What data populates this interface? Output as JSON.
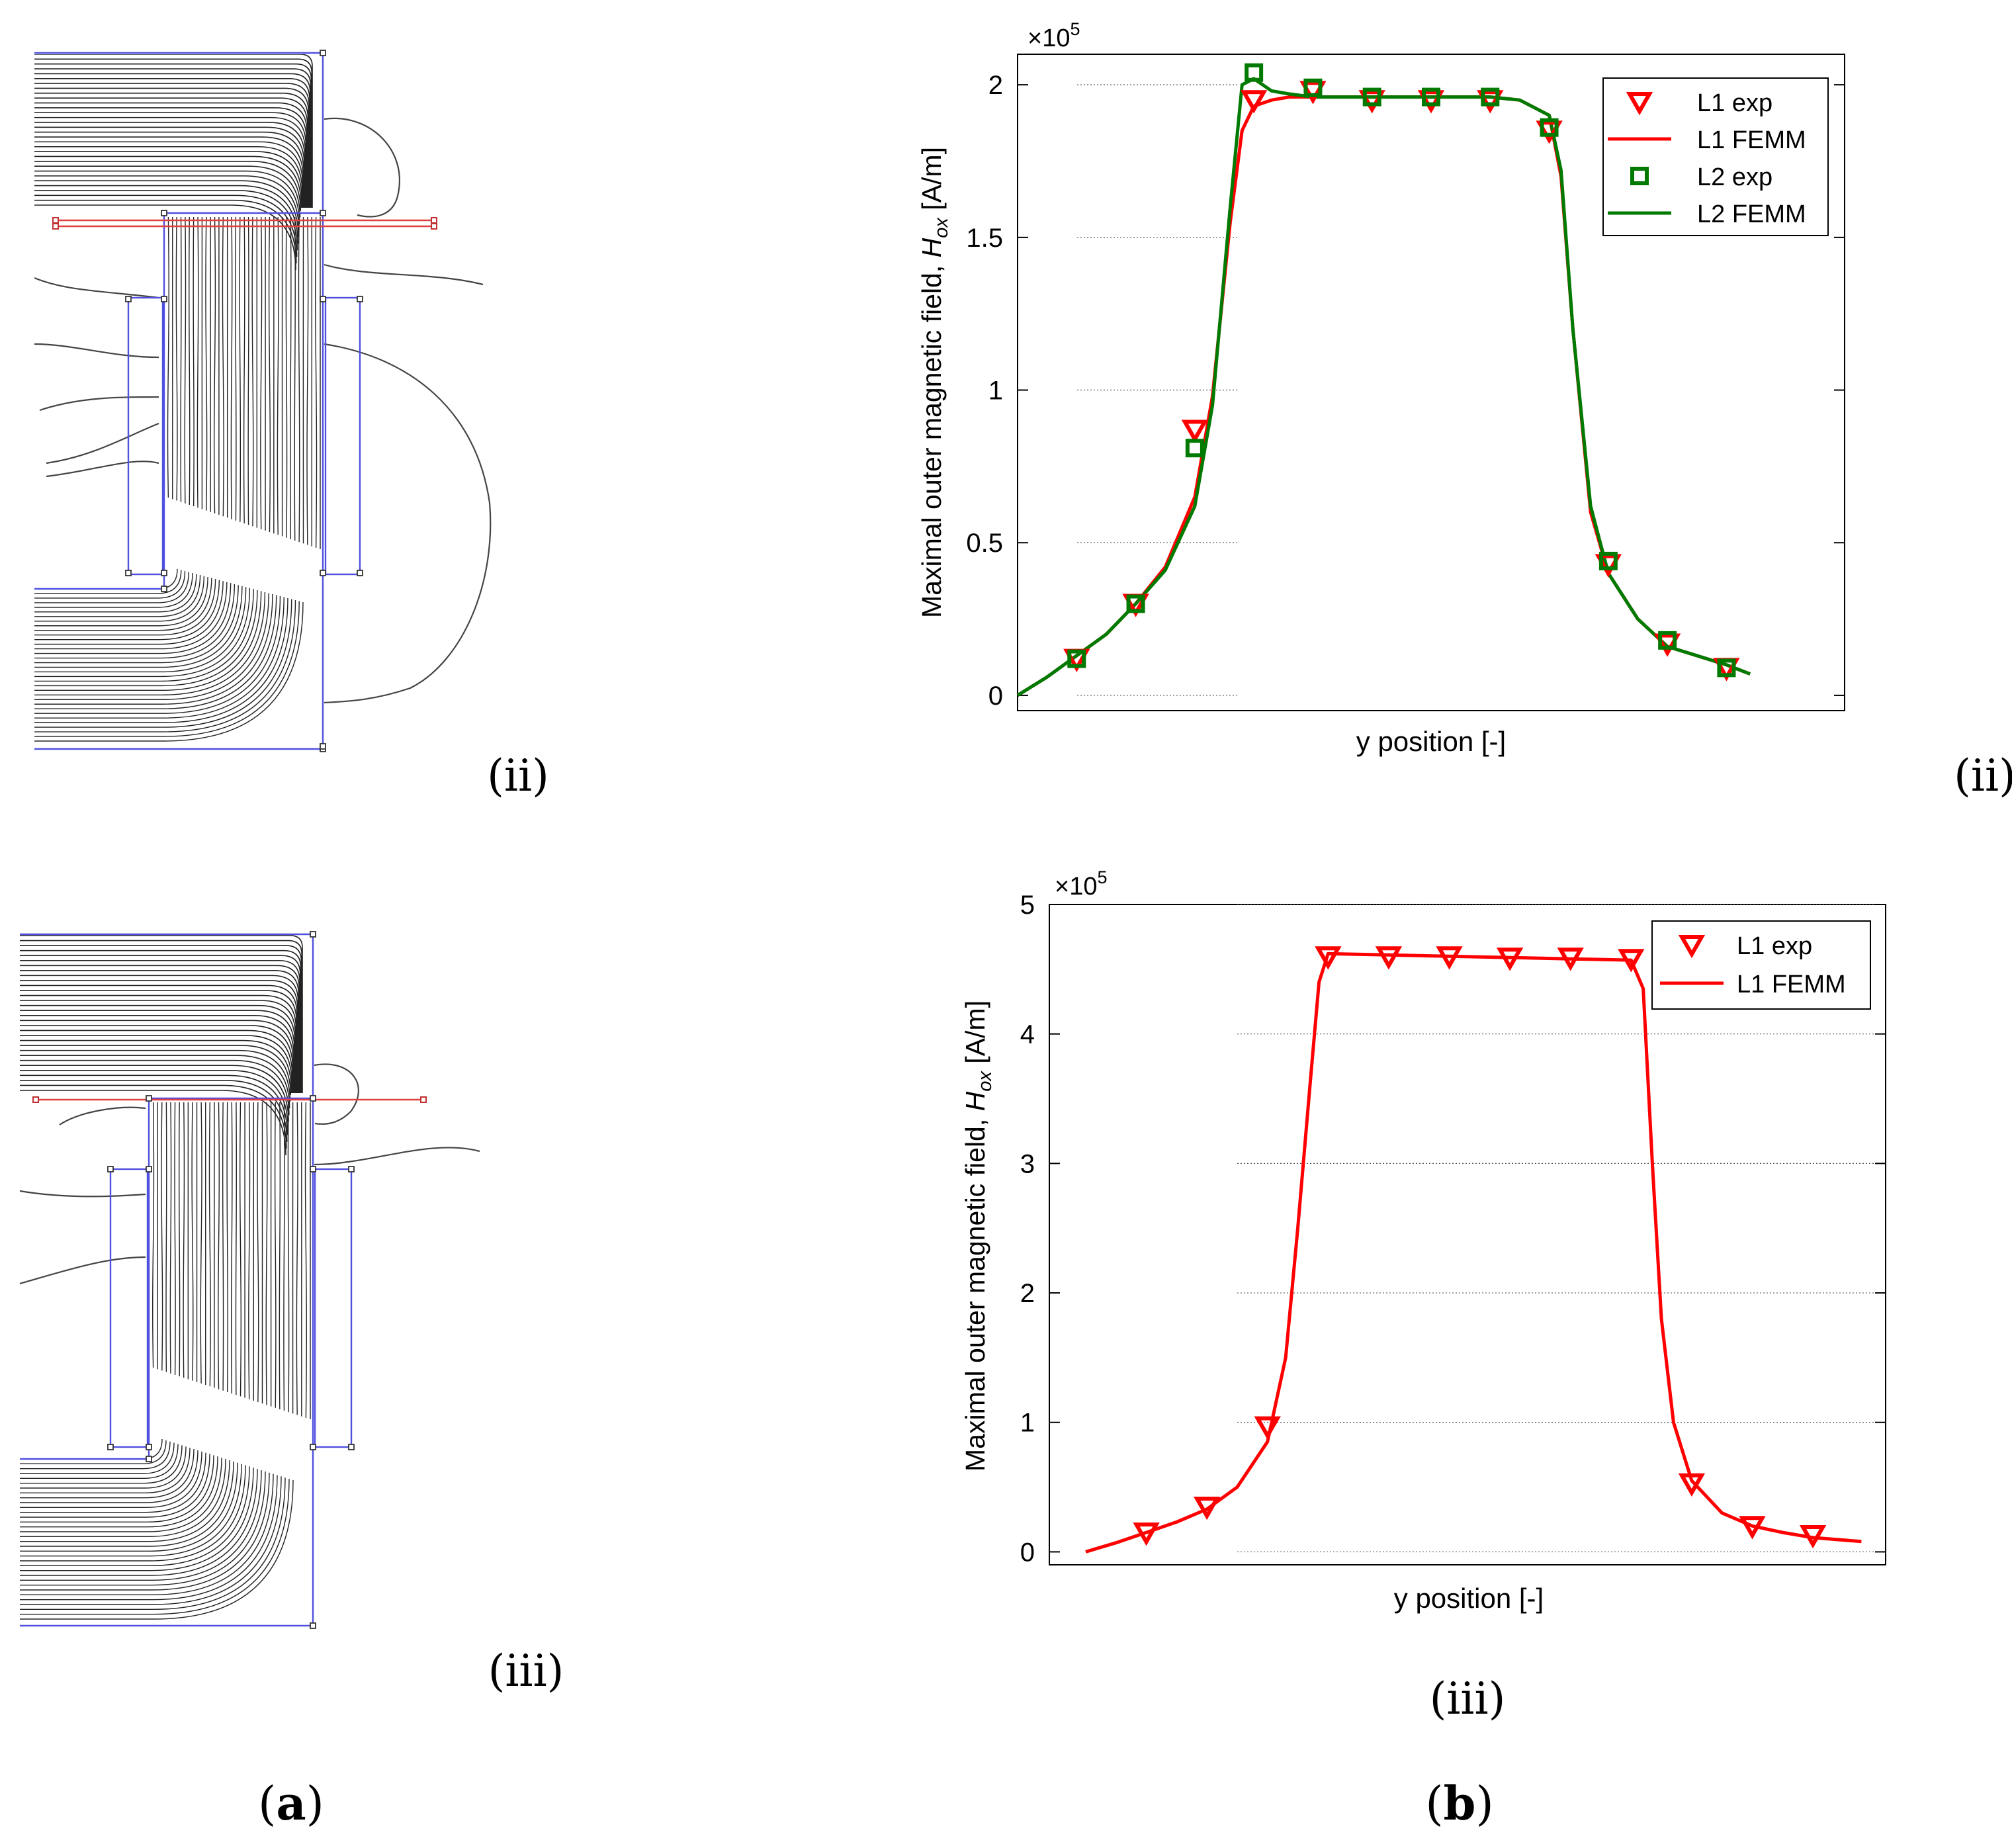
{
  "figure": {
    "panel_a": {
      "label": "(a)",
      "subplots": [
        {
          "label": "(ii)",
          "description": "FEMM field line simulation, variant ii"
        },
        {
          "label": "(iii)",
          "description": "FEMM field line simulation, variant iii"
        }
      ]
    },
    "panel_b": {
      "label": "(b)"
    }
  },
  "chart_data": [
    {
      "type": "line",
      "panel_label": "(ii)",
      "title": "",
      "xlabel": "y position [-]",
      "ylabel_main": "Maximal outer magnetic field,  ",
      "ylabel_symbol": "H",
      "ylabel_sub": "ox",
      "ylabel_unit": " [A/m]",
      "exponent_label": "×10",
      "exponent_power": "5",
      "xlim": [
        0,
        14
      ],
      "ylim": [
        -0.05,
        2.1
      ],
      "yticks": [
        0,
        0.5,
        1,
        1.5,
        2
      ],
      "ytick_labels": [
        "0",
        "0.5",
        "1",
        "1.5",
        "2"
      ],
      "grid": "partial horizontal gridlines",
      "legend_position": "top-right",
      "legend": [
        "L1 exp",
        "L1 FEMM",
        "L2 exp",
        "L2 FEMM"
      ],
      "colors": {
        "L1": "#ff0000",
        "L2": "#007a00"
      },
      "series": [
        {
          "name": "L1 exp",
          "marker": "triangle-down",
          "x": [
            1,
            2,
            3,
            4,
            5,
            6,
            7,
            8,
            9,
            10,
            11,
            12,
            13
          ],
          "values": [
            0.12,
            0.3,
            0.87,
            1.95,
            1.98,
            1.95,
            1.95,
            1.95,
            1.85,
            0.43,
            0.17,
            0.09,
            null
          ]
        },
        {
          "name": "L1 FEMM",
          "style": "line",
          "x": [
            0,
            0.5,
            1,
            1.5,
            2,
            2.5,
            3,
            3.3,
            3.6,
            3.8,
            4,
            4.3,
            4.6,
            5,
            6,
            7,
            8,
            8.5,
            9,
            9.2,
            9.4,
            9.7,
            10,
            10.5,
            11,
            12,
            12.4
          ],
          "values": [
            0,
            0.06,
            0.13,
            0.2,
            0.3,
            0.42,
            0.65,
            0.98,
            1.55,
            1.85,
            1.93,
            1.95,
            1.96,
            1.96,
            1.96,
            1.96,
            1.96,
            1.95,
            1.9,
            1.7,
            1.2,
            0.6,
            0.4,
            0.25,
            0.16,
            0.1,
            0.07
          ]
        },
        {
          "name": "L2 exp",
          "marker": "square",
          "x": [
            1,
            2,
            3,
            4,
            5,
            6,
            7,
            8,
            9,
            10,
            11,
            12,
            13
          ],
          "values": [
            0.12,
            0.3,
            0.81,
            2.04,
            1.99,
            1.96,
            1.96,
            1.96,
            1.86,
            0.44,
            0.18,
            0.09,
            null
          ]
        },
        {
          "name": "L2 FEMM",
          "style": "line",
          "x": [
            0,
            0.5,
            1,
            1.5,
            2,
            2.5,
            3,
            3.3,
            3.6,
            3.8,
            4,
            4.3,
            4.6,
            5,
            6,
            7,
            8,
            8.5,
            9,
            9.2,
            9.4,
            9.7,
            10,
            10.5,
            11,
            12,
            12.4
          ],
          "values": [
            0,
            0.06,
            0.13,
            0.2,
            0.3,
            0.41,
            0.62,
            0.95,
            1.6,
            2.0,
            2.02,
            1.98,
            1.97,
            1.96,
            1.96,
            1.96,
            1.96,
            1.95,
            1.9,
            1.72,
            1.2,
            0.62,
            0.4,
            0.25,
            0.16,
            0.1,
            0.07
          ]
        }
      ]
    },
    {
      "type": "line",
      "panel_label": "(iii)",
      "title": "",
      "xlabel": "y position [-]",
      "ylabel_main": "Maximal outer magnetic field, ",
      "ylabel_symbol": "H",
      "ylabel_sub": "ox",
      "ylabel_unit": " [A/m]",
      "exponent_label": "×10",
      "exponent_power": "5",
      "xlim": [
        -0.6,
        13.2
      ],
      "ylim": [
        -0.1,
        5
      ],
      "yticks": [
        0,
        1,
        2,
        3,
        4,
        5
      ],
      "ytick_labels": [
        "0",
        "1",
        "2",
        "3",
        "4",
        "5"
      ],
      "grid": "partial horizontal gridlines",
      "legend_position": "top-right",
      "legend": [
        "L1 exp",
        "L1 FEMM"
      ],
      "colors": {
        "L1": "#ff0000"
      },
      "series": [
        {
          "name": "L1 exp",
          "marker": "triangle-down",
          "x": [
            1,
            2,
            3,
            4,
            5,
            6,
            7,
            8,
            9,
            10,
            11,
            12,
            13
          ],
          "values": [
            0.15,
            0.35,
            0.97,
            4.6,
            4.6,
            4.6,
            4.59,
            4.59,
            4.58,
            0.53,
            0.2,
            0.13,
            null
          ]
        },
        {
          "name": "L1 FEMM",
          "style": "line",
          "x": [
            0,
            0.5,
            1,
            1.5,
            2,
            2.5,
            3,
            3.3,
            3.5,
            3.7,
            3.85,
            4,
            5,
            6,
            7,
            8,
            9,
            9.2,
            9.35,
            9.5,
            9.7,
            10,
            10.5,
            11,
            11.5,
            12,
            12.8
          ],
          "values": [
            0,
            0.07,
            0.15,
            0.23,
            0.33,
            0.5,
            0.85,
            1.5,
            2.5,
            3.6,
            4.4,
            4.62,
            4.61,
            4.6,
            4.59,
            4.58,
            4.57,
            4.35,
            3.0,
            1.8,
            1.0,
            0.55,
            0.3,
            0.2,
            0.15,
            0.11,
            0.08
          ]
        }
      ]
    }
  ]
}
